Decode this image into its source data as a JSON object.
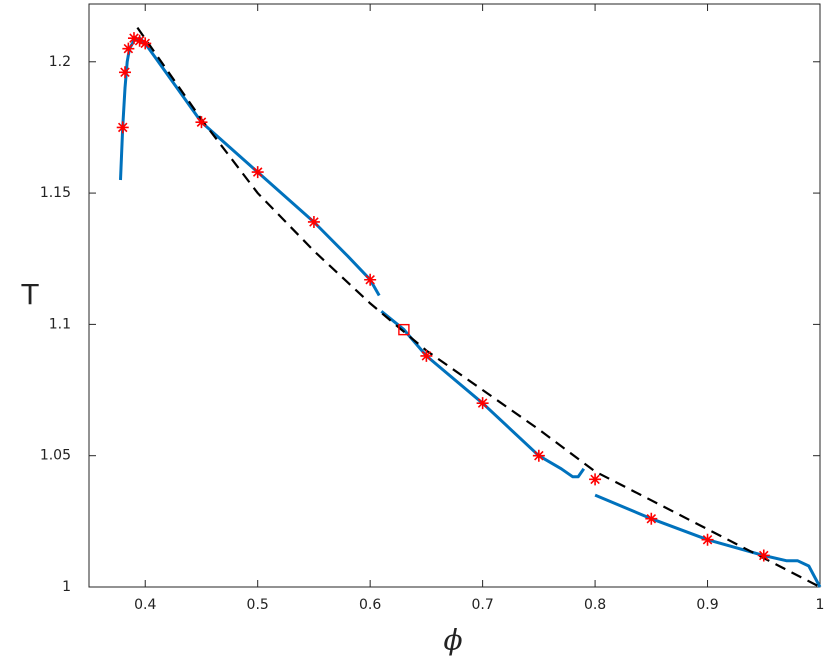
{
  "chart_data": {
    "type": "line",
    "xlabel": "ϕ",
    "ylabel": "T",
    "xlim": [
      0.35,
      1
    ],
    "ylim": [
      1,
      1.222
    ],
    "xticks": [
      0.4,
      0.5,
      0.6,
      0.7,
      0.8,
      0.9,
      1
    ],
    "yticks": [
      1,
      1.05,
      1.1,
      1.15,
      1.2
    ],
    "series": [
      {
        "color": "#0072bd",
        "style": "solid",
        "x": [
          0.378,
          0.379,
          0.38,
          0.382,
          0.384,
          0.386,
          0.39,
          0.395,
          0.4,
          0.42,
          0.45,
          0.5,
          0.55,
          0.58,
          0.6,
          0.608,
          null,
          0.61,
          0.63,
          0.65,
          0.7,
          0.75,
          0.77,
          0.78,
          0.785,
          0.79,
          null,
          0.8,
          0.85,
          0.9,
          0.95,
          0.97,
          0.98,
          0.99,
          1.0
        ],
        "values": [
          1.155,
          1.165,
          1.175,
          1.19,
          1.2,
          1.205,
          1.208,
          1.209,
          1.207,
          1.195,
          1.177,
          1.158,
          1.139,
          1.126,
          1.117,
          1.111,
          null,
          1.105,
          1.098,
          1.088,
          1.07,
          1.05,
          1.045,
          1.042,
          1.042,
          1.045,
          null,
          1.035,
          1.026,
          1.018,
          1.012,
          1.01,
          1.01,
          1.008,
          1.0
        ]
      },
      {
        "color": "#000000",
        "style": "dashed",
        "x": [
          0.393,
          0.45,
          0.5,
          0.55,
          0.6,
          0.65,
          0.7,
          0.75,
          0.8,
          0.85,
          0.9,
          0.95,
          1.0
        ],
        "values": [
          1.213,
          1.178,
          1.15,
          1.128,
          1.108,
          1.09,
          1.075,
          1.06,
          1.044,
          1.033,
          1.022,
          1.011,
          1.0
        ]
      },
      {
        "color": "#ff0000",
        "style": "asterisk",
        "x": [
          0.38,
          0.382,
          0.385,
          0.39,
          0.395,
          0.4,
          0.45,
          0.5,
          0.55,
          0.6,
          0.65,
          0.7,
          0.75,
          0.8,
          0.85,
          0.9,
          0.95
        ],
        "values": [
          1.175,
          1.196,
          1.205,
          1.209,
          1.208,
          1.207,
          1.177,
          1.158,
          1.139,
          1.117,
          1.088,
          1.07,
          1.05,
          1.041,
          1.026,
          1.018,
          1.012
        ]
      },
      {
        "color": "#ff0000",
        "style": "square",
        "x": [
          0.63
        ],
        "values": [
          1.098
        ]
      }
    ]
  }
}
